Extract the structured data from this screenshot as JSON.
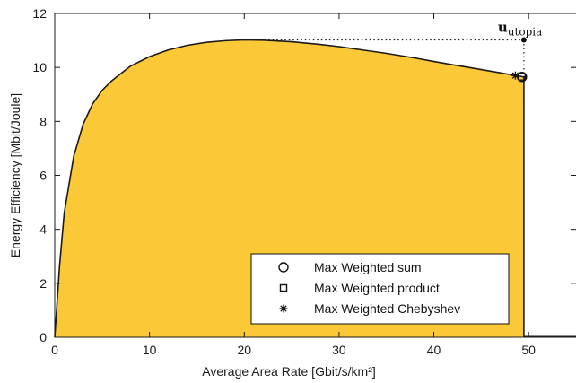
{
  "chart_data": {
    "type": "area",
    "xlabel": "Average Area Rate [Gbit/s/km²]",
    "ylabel": "Energy Efficiency [Mbit/Joule]",
    "xlim": [
      0,
      55
    ],
    "ylim": [
      0,
      12
    ],
    "xticks": [
      0,
      10,
      20,
      30,
      40,
      50
    ],
    "yticks": [
      0,
      2,
      4,
      6,
      8,
      10,
      12
    ],
    "grid": false,
    "legend_position": "bottom-right",
    "colors": {
      "region_fill": "#fbc938",
      "boundary": "#1a1a1a",
      "axes": "#1a1a1a"
    },
    "region": {
      "x": [
        0,
        0.5,
        1,
        2,
        3,
        4,
        5,
        6,
        8,
        10,
        12,
        14,
        16,
        18,
        20,
        22,
        25,
        28,
        30,
        33,
        35,
        38,
        40,
        43,
        45,
        47,
        48,
        49,
        49.3,
        49.5,
        49.5
      ],
      "y": [
        0,
        2.6,
        4.6,
        6.7,
        7.9,
        8.65,
        9.15,
        9.5,
        10.05,
        10.4,
        10.65,
        10.82,
        10.93,
        10.99,
        11.02,
        11.01,
        10.95,
        10.85,
        10.77,
        10.62,
        10.52,
        10.35,
        10.22,
        10.04,
        9.92,
        9.8,
        9.74,
        9.68,
        9.66,
        9.65,
        0
      ]
    },
    "utopia_point": {
      "x": 49.5,
      "y": 11.02,
      "label": "u",
      "subscript": "utopia"
    },
    "tail_segment": {
      "x": [
        49.5,
        55
      ],
      "y": [
        0,
        0
      ]
    },
    "markers": [
      {
        "name": "Max Weighted sum",
        "symbol": "circle",
        "x": 49.3,
        "y": 9.65
      },
      {
        "name": "Max Weighted product",
        "symbol": "square",
        "x": 49.3,
        "y": 9.65
      },
      {
        "name": "Max Weighted Chebyshev",
        "symbol": "asterisk",
        "x": 48.6,
        "y": 9.7
      }
    ]
  }
}
